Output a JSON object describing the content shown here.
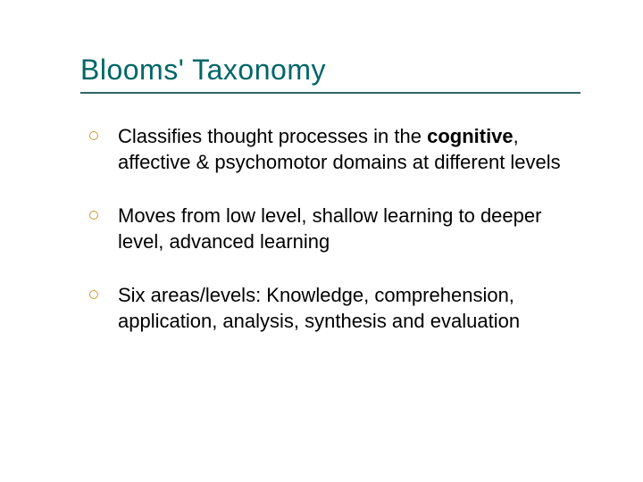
{
  "slide": {
    "title": "Blooms' Taxonomy",
    "title_color": "#006666",
    "title_fontsize": 32,
    "rule_color": "#336666",
    "background_color": "#ffffff",
    "body_color": "#000000",
    "body_fontsize": 22,
    "bullet_border_color": "#cc9933",
    "bullets": [
      {
        "pre": "Classifies thought processes in the ",
        "bold": "cognitive",
        "post": ", affective & psychomotor domains at different levels"
      },
      {
        "pre": "Moves from low level, shallow learning to deeper level, advanced learning",
        "bold": "",
        "post": ""
      },
      {
        "pre": "Six areas/levels: Knowledge, comprehension, application, analysis, synthesis and evaluation",
        "bold": "",
        "post": ""
      }
    ]
  }
}
